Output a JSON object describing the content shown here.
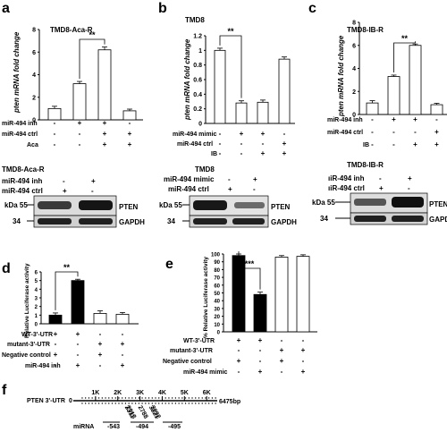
{
  "panels": {
    "a": {
      "letter": "a",
      "title": "TMD8-Aca-R",
      "ylabel": "pten mRNA fold change",
      "sig": "**",
      "rows": [
        {
          "label": "miR-494 inh",
          "signs": [
            "-",
            "+",
            "+",
            "-"
          ]
        },
        {
          "label": "miR-494 ctrl",
          "signs": [
            "-",
            "-",
            "+",
            "+"
          ]
        },
        {
          "label": "Aca",
          "signs": [
            "-",
            "-",
            "+",
            "+"
          ]
        }
      ],
      "blot": {
        "title": "TMD8-Aca-R",
        "rows": [
          {
            "label": "miR-494 inh",
            "signs": [
              "-",
              "+"
            ]
          },
          {
            "label": "miR-494 ctrl",
            "signs": [
              "+",
              "-"
            ]
          }
        ],
        "kda_top": "kDa 55",
        "kda_bottom": "34",
        "band_top": "PTEN",
        "band_bottom": "GAPDH"
      }
    },
    "b": {
      "letter": "b",
      "title": "TMD8",
      "ylabel": "pten mRNA fold change",
      "sig": "**",
      "rows": [
        {
          "label": "miR-494 mimic",
          "signs": [
            "-",
            "+",
            "+",
            "-"
          ]
        },
        {
          "label": "miR-494 ctrl",
          "signs": [
            "-",
            "-",
            "-",
            "+"
          ]
        },
        {
          "label": "IB",
          "signs": [
            "-",
            "-",
            "+",
            "+"
          ]
        }
      ],
      "blot": {
        "title": "TMD8",
        "rows": [
          {
            "label": "miR-494 mimic",
            "signs": [
              "-",
              "+"
            ]
          },
          {
            "label": "miR-494 ctrl",
            "signs": [
              "+",
              "-"
            ]
          }
        ],
        "kda_top": "kDa 55",
        "kda_bottom": "34",
        "band_top": "PTEN",
        "band_bottom": "GAPDH"
      }
    },
    "c": {
      "letter": "c",
      "title": "TMD8-IB-R",
      "ylabel": "pten mRNA fold change",
      "sig": "**",
      "rows": [
        {
          "label": "miR-494 inh",
          "signs": [
            "-",
            "+",
            "+",
            "-"
          ]
        },
        {
          "label": "miR-494 ctrl",
          "signs": [
            "-",
            "-",
            "-",
            "+"
          ]
        },
        {
          "label": "IB",
          "signs": [
            "-",
            "-",
            "+",
            "+"
          ]
        }
      ],
      "blot": {
        "title": "TMD8-IB-R",
        "rows": [
          {
            "label": "miR-494 inh",
            "signs": [
              "-",
              "+"
            ]
          },
          {
            "label": "miR-494 ctrl",
            "signs": [
              "+",
              "-"
            ]
          }
        ],
        "row_label_display": [
          "ıiR-494 inh",
          "ıiR-494 ctrl"
        ],
        "kda_top": "kDa 55",
        "kda_bottom": "34",
        "band_top": "PTEN",
        "band_bottom": "GAPDH"
      }
    },
    "d": {
      "letter": "d",
      "ylabel": "Relative Luciferase activity",
      "sig": "**",
      "rows": [
        {
          "label": "WT-3'-UTR",
          "signs": [
            "+",
            "+",
            "-",
            "-"
          ]
        },
        {
          "label": "mutant-3'-UTR",
          "signs": [
            "-",
            "-",
            "+",
            "+"
          ]
        },
        {
          "label": "Negative control",
          "signs": [
            "+",
            "-",
            "+",
            "-"
          ]
        },
        {
          "label": "miR-494 inh",
          "signs": [
            "-",
            "+",
            "-",
            "+"
          ]
        }
      ]
    },
    "e": {
      "letter": "e",
      "ylabel": "% Relative Luciferase activity",
      "sig": "***",
      "rows": [
        {
          "label": "WT-3'-UTR",
          "signs": [
            "+",
            "+",
            "-",
            "-"
          ]
        },
        {
          "label": "mutant-3'-UTR",
          "signs": [
            "-",
            "-",
            "+",
            "+"
          ]
        },
        {
          "label": "Negative control",
          "signs": [
            "+",
            "-",
            "+",
            "-"
          ]
        },
        {
          "label": "miR-494 mimic",
          "signs": [
            "-",
            "+",
            "-",
            "+"
          ]
        }
      ]
    },
    "f": {
      "letter": "f",
      "label": "PTEN 3'-UTR",
      "start": "0",
      "end": "6475bp",
      "ticks": [
        "1K",
        "2K",
        "3K",
        "4K",
        "5K",
        "6K"
      ],
      "sites": [
        "2311",
        "2313",
        "2788",
        "3221",
        "3232"
      ],
      "mirna_label": "miRNA",
      "mirnas": [
        "-543",
        "-494",
        "-495"
      ]
    }
  },
  "chart_data": [
    {
      "type": "bar",
      "categories": [
        "1",
        "2",
        "3",
        "4"
      ],
      "values": [
        1.0,
        3.2,
        6.2,
        0.8
      ],
      "errors": [
        0.2,
        0.2,
        0.25,
        0.15
      ],
      "bar_colors": [
        "#ffffff",
        "#ffffff",
        "#ffffff",
        "#ffffff"
      ],
      "ylabel": "pten mRNA fold change",
      "ylim": [
        0,
        8
      ],
      "yticks": [
        "0",
        "2",
        "4",
        "6",
        "8"
      ],
      "sig_pair": [
        1,
        2
      ]
    },
    {
      "type": "bar",
      "categories": [
        "1",
        "2",
        "3",
        "4"
      ],
      "values": [
        1.0,
        0.28,
        0.29,
        0.88
      ],
      "errors": [
        0.03,
        0.03,
        0.03,
        0.03
      ],
      "bar_colors": [
        "#ffffff",
        "#ffffff",
        "#ffffff",
        "#ffffff"
      ],
      "ylabel": "pten mRNA fold change",
      "ylim": [
        0,
        1.2
      ],
      "yticks": [
        "0",
        "0.2",
        "0.4",
        "0.6",
        "0.8",
        "1",
        "1.2"
      ],
      "sig_pair": [
        0,
        1
      ]
    },
    {
      "type": "bar",
      "categories": [
        "1",
        "2",
        "3",
        "4"
      ],
      "values": [
        1.0,
        3.3,
        6.0,
        0.85
      ],
      "errors": [
        0.2,
        0.12,
        0.12,
        0.12
      ],
      "bar_colors": [
        "#ffffff",
        "#ffffff",
        "#ffffff",
        "#ffffff"
      ],
      "ylabel": "pten mRNA fold change",
      "ylim": [
        0,
        8
      ],
      "yticks": [
        "0",
        "2",
        "4",
        "6",
        "8"
      ],
      "sig_pair": [
        1,
        2
      ]
    },
    {
      "type": "bar",
      "categories": [
        "1",
        "2",
        "3",
        "4"
      ],
      "values": [
        1.0,
        5.0,
        1.2,
        1.1
      ],
      "errors": [
        0.25,
        0.15,
        0.3,
        0.2
      ],
      "bar_colors": [
        "#000000",
        "#000000",
        "#ffffff",
        "#ffffff"
      ],
      "ylabel": "Relative Luciferase activity",
      "ylim": [
        0,
        6
      ],
      "yticks": [
        "0",
        "1",
        "2",
        "3",
        "4",
        "5",
        "6"
      ],
      "sig_pair": [
        0,
        1
      ]
    },
    {
      "type": "bar",
      "categories": [
        "1",
        "2",
        "3",
        "4"
      ],
      "values": [
        98,
        48,
        96,
        97
      ],
      "errors": [
        2,
        3,
        2,
        2
      ],
      "bar_colors": [
        "#000000",
        "#000000",
        "#ffffff",
        "#ffffff"
      ],
      "ylabel": "% Relative Luciferase activity",
      "ylim": [
        0,
        100
      ],
      "yticks": [
        "0",
        "10",
        "20",
        "30",
        "40",
        "50",
        "60",
        "70",
        "80",
        "90",
        "100"
      ],
      "sig_pair": [
        0,
        1
      ]
    }
  ]
}
